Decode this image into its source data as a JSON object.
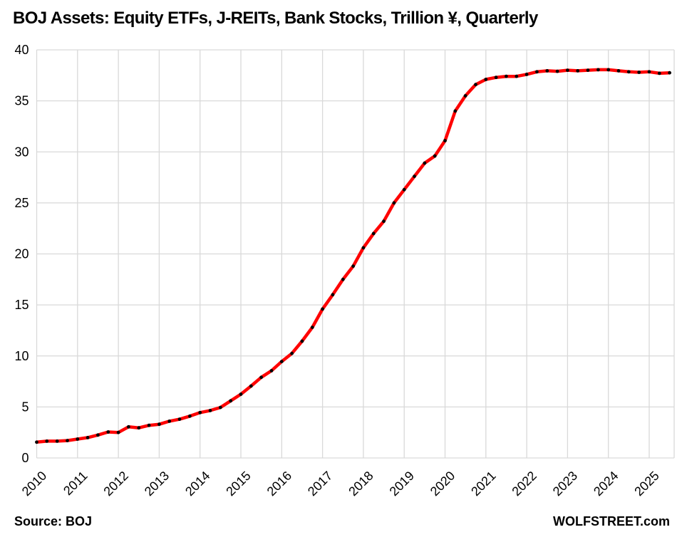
{
  "page": {
    "title": "BOJ Assets: Equity ETFs, J-REITs, Bank Stocks, Trillion ¥, Quarterly",
    "source_label": "Source: BOJ",
    "watermark": "WOLFSTREET.com"
  },
  "chart_data": {
    "type": "line",
    "title": "BOJ Assets: Equity ETFs, J-REITs, Bank Stocks, Trillion ¥, Quarterly",
    "frequency": "quarterly",
    "x_start": "2010 Q1",
    "x_end": "2025 Q3",
    "x_tick_labels": [
      "2010",
      "2011",
      "2012",
      "2013",
      "2014",
      "2015",
      "2016",
      "2017",
      "2018",
      "2019",
      "2020",
      "2021",
      "2022",
      "2023",
      "2024",
      "2025"
    ],
    "ylim": [
      0,
      40
    ],
    "y_ticks": [
      0,
      5,
      10,
      15,
      20,
      25,
      30,
      35,
      40
    ],
    "grid": true,
    "legend": false,
    "colors": {
      "line": "#ff0000",
      "marker": "#000000",
      "gridline": "#d9d9d9",
      "text": "#000000"
    },
    "series": [
      {
        "values": [
          1.55,
          1.65,
          1.65,
          1.7,
          1.85,
          2.0,
          2.25,
          2.55,
          2.5,
          3.05,
          2.95,
          3.2,
          3.3,
          3.6,
          3.8,
          4.1,
          4.45,
          4.65,
          4.95,
          5.6,
          6.25,
          7.05,
          7.9,
          8.55,
          9.45,
          10.25,
          11.45,
          12.8,
          14.6,
          16.0,
          17.5,
          18.8,
          20.6,
          22.0,
          23.2,
          25.0,
          26.3,
          27.6,
          28.9,
          29.6,
          31.1,
          34.0,
          35.5,
          36.6,
          37.1,
          37.3,
          37.4,
          37.4,
          37.6,
          37.85,
          37.95,
          37.9,
          38.0,
          37.95,
          38.0,
          38.05,
          38.05,
          37.95,
          37.85,
          37.8,
          37.85,
          37.7,
          37.75
        ]
      }
    ]
  }
}
